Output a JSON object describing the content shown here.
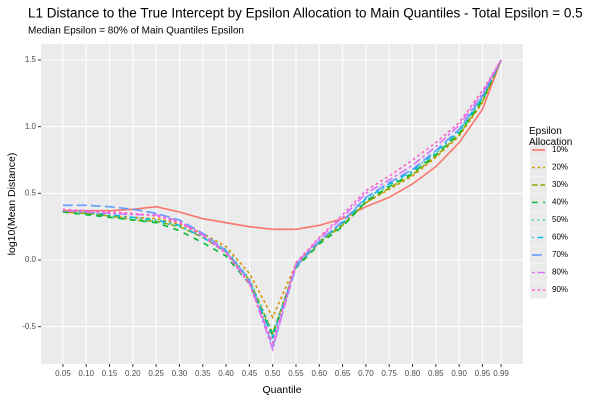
{
  "chart_data": {
    "type": "line",
    "title": "L1 Distance to the True Intercept by Epsilon Allocation to Main Quantiles - Total Epsilon = 0.5",
    "subtitle": "Median Epsilon = 80% of Main Quantiles Epsilon",
    "x_label": "Quantile",
    "y_label": "log10(Mean Distance)",
    "legend_title": "Epsilon Allocation",
    "legend_position": "right",
    "grid": true,
    "x": [
      0.05,
      0.1,
      0.15,
      0.2,
      0.25,
      0.3,
      0.35,
      0.4,
      0.45,
      0.5,
      0.55,
      0.6,
      0.65,
      0.7,
      0.75,
      0.8,
      0.85,
      0.9,
      0.95,
      0.99
    ],
    "xlim": [
      0.003,
      1.037
    ],
    "xticks": [
      {
        "value": 0.05,
        "label": "0.05"
      },
      {
        "value": 0.1,
        "label": "0.10"
      },
      {
        "value": 0.15,
        "label": "0.15"
      },
      {
        "value": 0.2,
        "label": "0.20"
      },
      {
        "value": 0.25,
        "label": "0.25"
      },
      {
        "value": 0.3,
        "label": "0.30"
      },
      {
        "value": 0.35,
        "label": "0.35"
      },
      {
        "value": 0.4,
        "label": "0.40"
      },
      {
        "value": 0.45,
        "label": "0.45"
      },
      {
        "value": 0.5,
        "label": "0.50"
      },
      {
        "value": 0.55,
        "label": "0.55"
      },
      {
        "value": 0.6,
        "label": "0.60"
      },
      {
        "value": 0.65,
        "label": "0.65"
      },
      {
        "value": 0.7,
        "label": "0.70"
      },
      {
        "value": 0.75,
        "label": "0.75"
      },
      {
        "value": 0.8,
        "label": "0.80"
      },
      {
        "value": 0.85,
        "label": "0.85"
      },
      {
        "value": 0.9,
        "label": "0.90"
      },
      {
        "value": 0.95,
        "label": "0.95"
      },
      {
        "value": 0.99,
        "label": "0.99"
      }
    ],
    "ylim": [
      -0.78,
      1.62
    ],
    "yticks": [
      -0.5,
      {
        "value": 0,
        "label": "0.0"
      },
      0.5,
      {
        "value": 1,
        "label": "1.0"
      },
      1.5
    ],
    "series": [
      {
        "name": "10%",
        "color": "#F8766D",
        "linetype": "solid",
        "values": [
          0.37,
          0.37,
          0.37,
          0.38,
          0.4,
          0.36,
          0.31,
          0.28,
          0.25,
          0.23,
          0.23,
          0.26,
          0.31,
          0.4,
          0.47,
          0.57,
          0.7,
          0.88,
          1.13,
          1.5
        ]
      },
      {
        "name": "20%",
        "color": "#D39200",
        "linetype": "22",
        "values": [
          0.36,
          0.35,
          0.33,
          0.32,
          0.31,
          0.27,
          0.2,
          0.1,
          -0.1,
          -0.43,
          -0.03,
          0.14,
          0.27,
          0.43,
          0.53,
          0.63,
          0.77,
          0.93,
          1.18,
          1.5
        ]
      },
      {
        "name": "30%",
        "color": "#93AA00",
        "linetype": "42",
        "values": [
          0.36,
          0.35,
          0.33,
          0.3,
          0.29,
          0.25,
          0.17,
          0.06,
          -0.15,
          -0.55,
          -0.05,
          0.13,
          0.26,
          0.43,
          0.54,
          0.64,
          0.78,
          0.94,
          1.19,
          1.5
        ]
      },
      {
        "name": "40%",
        "color": "#00BA38",
        "linetype": "44",
        "values": [
          0.36,
          0.34,
          0.32,
          0.3,
          0.28,
          0.22,
          0.13,
          0.03,
          -0.18,
          -0.57,
          -0.06,
          0.12,
          0.25,
          0.44,
          0.55,
          0.65,
          0.79,
          0.95,
          1.2,
          1.5
        ]
      },
      {
        "name": "50%",
        "color": "#00C19F",
        "linetype": "13",
        "values": [
          0.37,
          0.35,
          0.33,
          0.31,
          0.29,
          0.25,
          0.18,
          0.08,
          -0.14,
          -0.55,
          -0.04,
          0.14,
          0.27,
          0.45,
          0.56,
          0.66,
          0.8,
          0.96,
          1.21,
          1.5
        ]
      },
      {
        "name": "60%",
        "color": "#00B9E3",
        "linetype": "1343",
        "values": [
          0.37,
          0.36,
          0.34,
          0.32,
          0.3,
          0.26,
          0.17,
          0.06,
          -0.16,
          -0.58,
          -0.04,
          0.14,
          0.28,
          0.46,
          0.57,
          0.67,
          0.81,
          0.97,
          1.22,
          1.5
        ]
      },
      {
        "name": "70%",
        "color": "#619CFF",
        "linetype": "73",
        "values": [
          0.41,
          0.41,
          0.4,
          0.38,
          0.35,
          0.3,
          0.2,
          0.07,
          -0.15,
          -0.65,
          -0.05,
          0.14,
          0.29,
          0.47,
          0.58,
          0.68,
          0.82,
          0.98,
          1.23,
          1.5
        ]
      },
      {
        "name": "80%",
        "color": "#DB72FB",
        "linetype": "2262",
        "values": [
          0.37,
          0.36,
          0.35,
          0.34,
          0.34,
          0.29,
          0.19,
          0.06,
          -0.17,
          -0.67,
          -0.03,
          0.16,
          0.32,
          0.5,
          0.6,
          0.71,
          0.85,
          1.01,
          1.25,
          1.5
        ]
      },
      {
        "name": "90%",
        "color": "#FF61C3",
        "linetype": "22",
        "values": [
          0.38,
          0.37,
          0.36,
          0.35,
          0.33,
          0.28,
          0.18,
          0.05,
          -0.18,
          -0.62,
          -0.02,
          0.17,
          0.34,
          0.52,
          0.63,
          0.75,
          0.88,
          1.03,
          1.27,
          1.5
        ]
      }
    ]
  }
}
